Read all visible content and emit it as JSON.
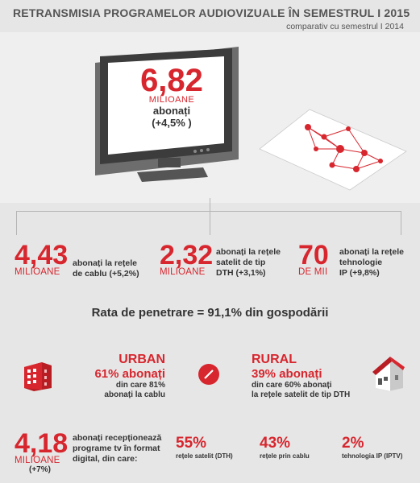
{
  "header": {
    "title": "RETRANSMISIA PROGRAMELOR AUDIOVIZUALE ÎN SEMESTRUL I 2015",
    "subtitle": "comparativ cu semestrul I 2014"
  },
  "tv": {
    "number": "6,82",
    "unit": "MILIOANE",
    "line1": "abonați",
    "line2": "(+4,5% )"
  },
  "stats": [
    {
      "number": "4,43",
      "unit": "MILIOANE",
      "desc1": "abonați la rețele",
      "desc2": "de cablu (+5,2%)",
      "desc3": ""
    },
    {
      "number": "2,32",
      "unit": "MILIOANE",
      "desc1": "abonați la rețele",
      "desc2": "satelit de tip",
      "desc3": "DTH (+3,1%)"
    },
    {
      "number": "70",
      "unit": "DE MII",
      "desc1": "abonați la rețele",
      "desc2": "tehnologie",
      "desc3": "IP (+9,8%)"
    }
  ],
  "penetration": "Rata de penetrare = 91,1% din gospodării",
  "urban": {
    "title": "URBAN",
    "pct": "61% abonați",
    "desc1": "din care 81%",
    "desc2": "abonați la cablu"
  },
  "rural": {
    "title": "RURAL",
    "pct": "39% abonați",
    "desc1": "din care 60% abonați",
    "desc2": "la rețele satelit de tip DTH"
  },
  "digital": {
    "number": "4,18",
    "unit": "MILIOANE",
    "change": "(+7%)",
    "desc1": "abonați recepționează",
    "desc2": "programe tv în format",
    "desc3": "digital, din care:",
    "items": [
      {
        "pct": "55%",
        "label": "rețele satelit (DTH)"
      },
      {
        "pct": "43%",
        "label": "rețele prin cablu"
      },
      {
        "pct": "2%",
        "label": "tehnologia IP (IPTV)"
      }
    ]
  },
  "colors": {
    "accent": "#d7262e",
    "background": "#e6e6e6",
    "text": "#333333"
  }
}
